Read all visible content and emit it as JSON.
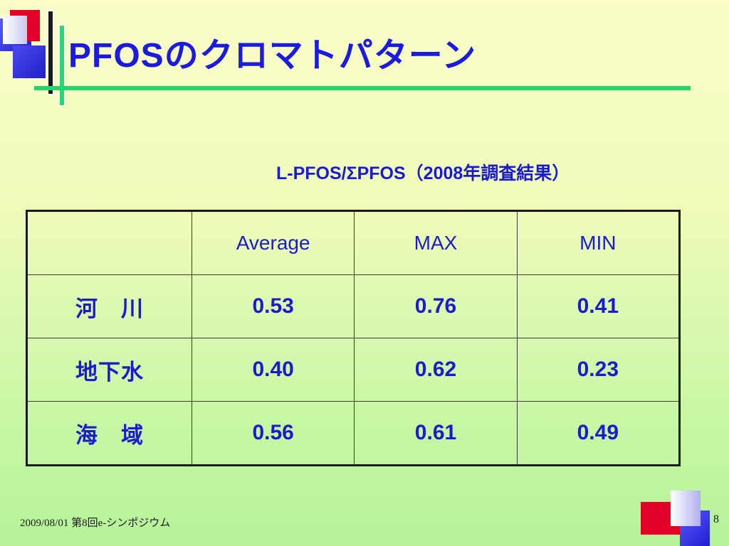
{
  "slide": {
    "title": "PFOSのクロマトパターン",
    "subtitle": "L-PFOS/ΣPFOS（2008年調査結果）",
    "footer": "2009/08/01  第8回e-シンポジウム",
    "page_number": "8"
  },
  "table": {
    "headers": [
      "",
      "Average",
      "MAX",
      "MIN"
    ],
    "rows": [
      {
        "label": "河　川",
        "values": [
          "0.53",
          "0.76",
          "0.41"
        ]
      },
      {
        "label": "地下水",
        "values": [
          "0.40",
          "0.62",
          "0.23"
        ]
      },
      {
        "label": "海　域",
        "values": [
          "0.56",
          "0.61",
          "0.49"
        ]
      }
    ]
  },
  "colors": {
    "title": "#1a1ae0",
    "accent_line": "#22d66a",
    "decor_red": "#e00028",
    "decor_blue": "#2020c8"
  }
}
